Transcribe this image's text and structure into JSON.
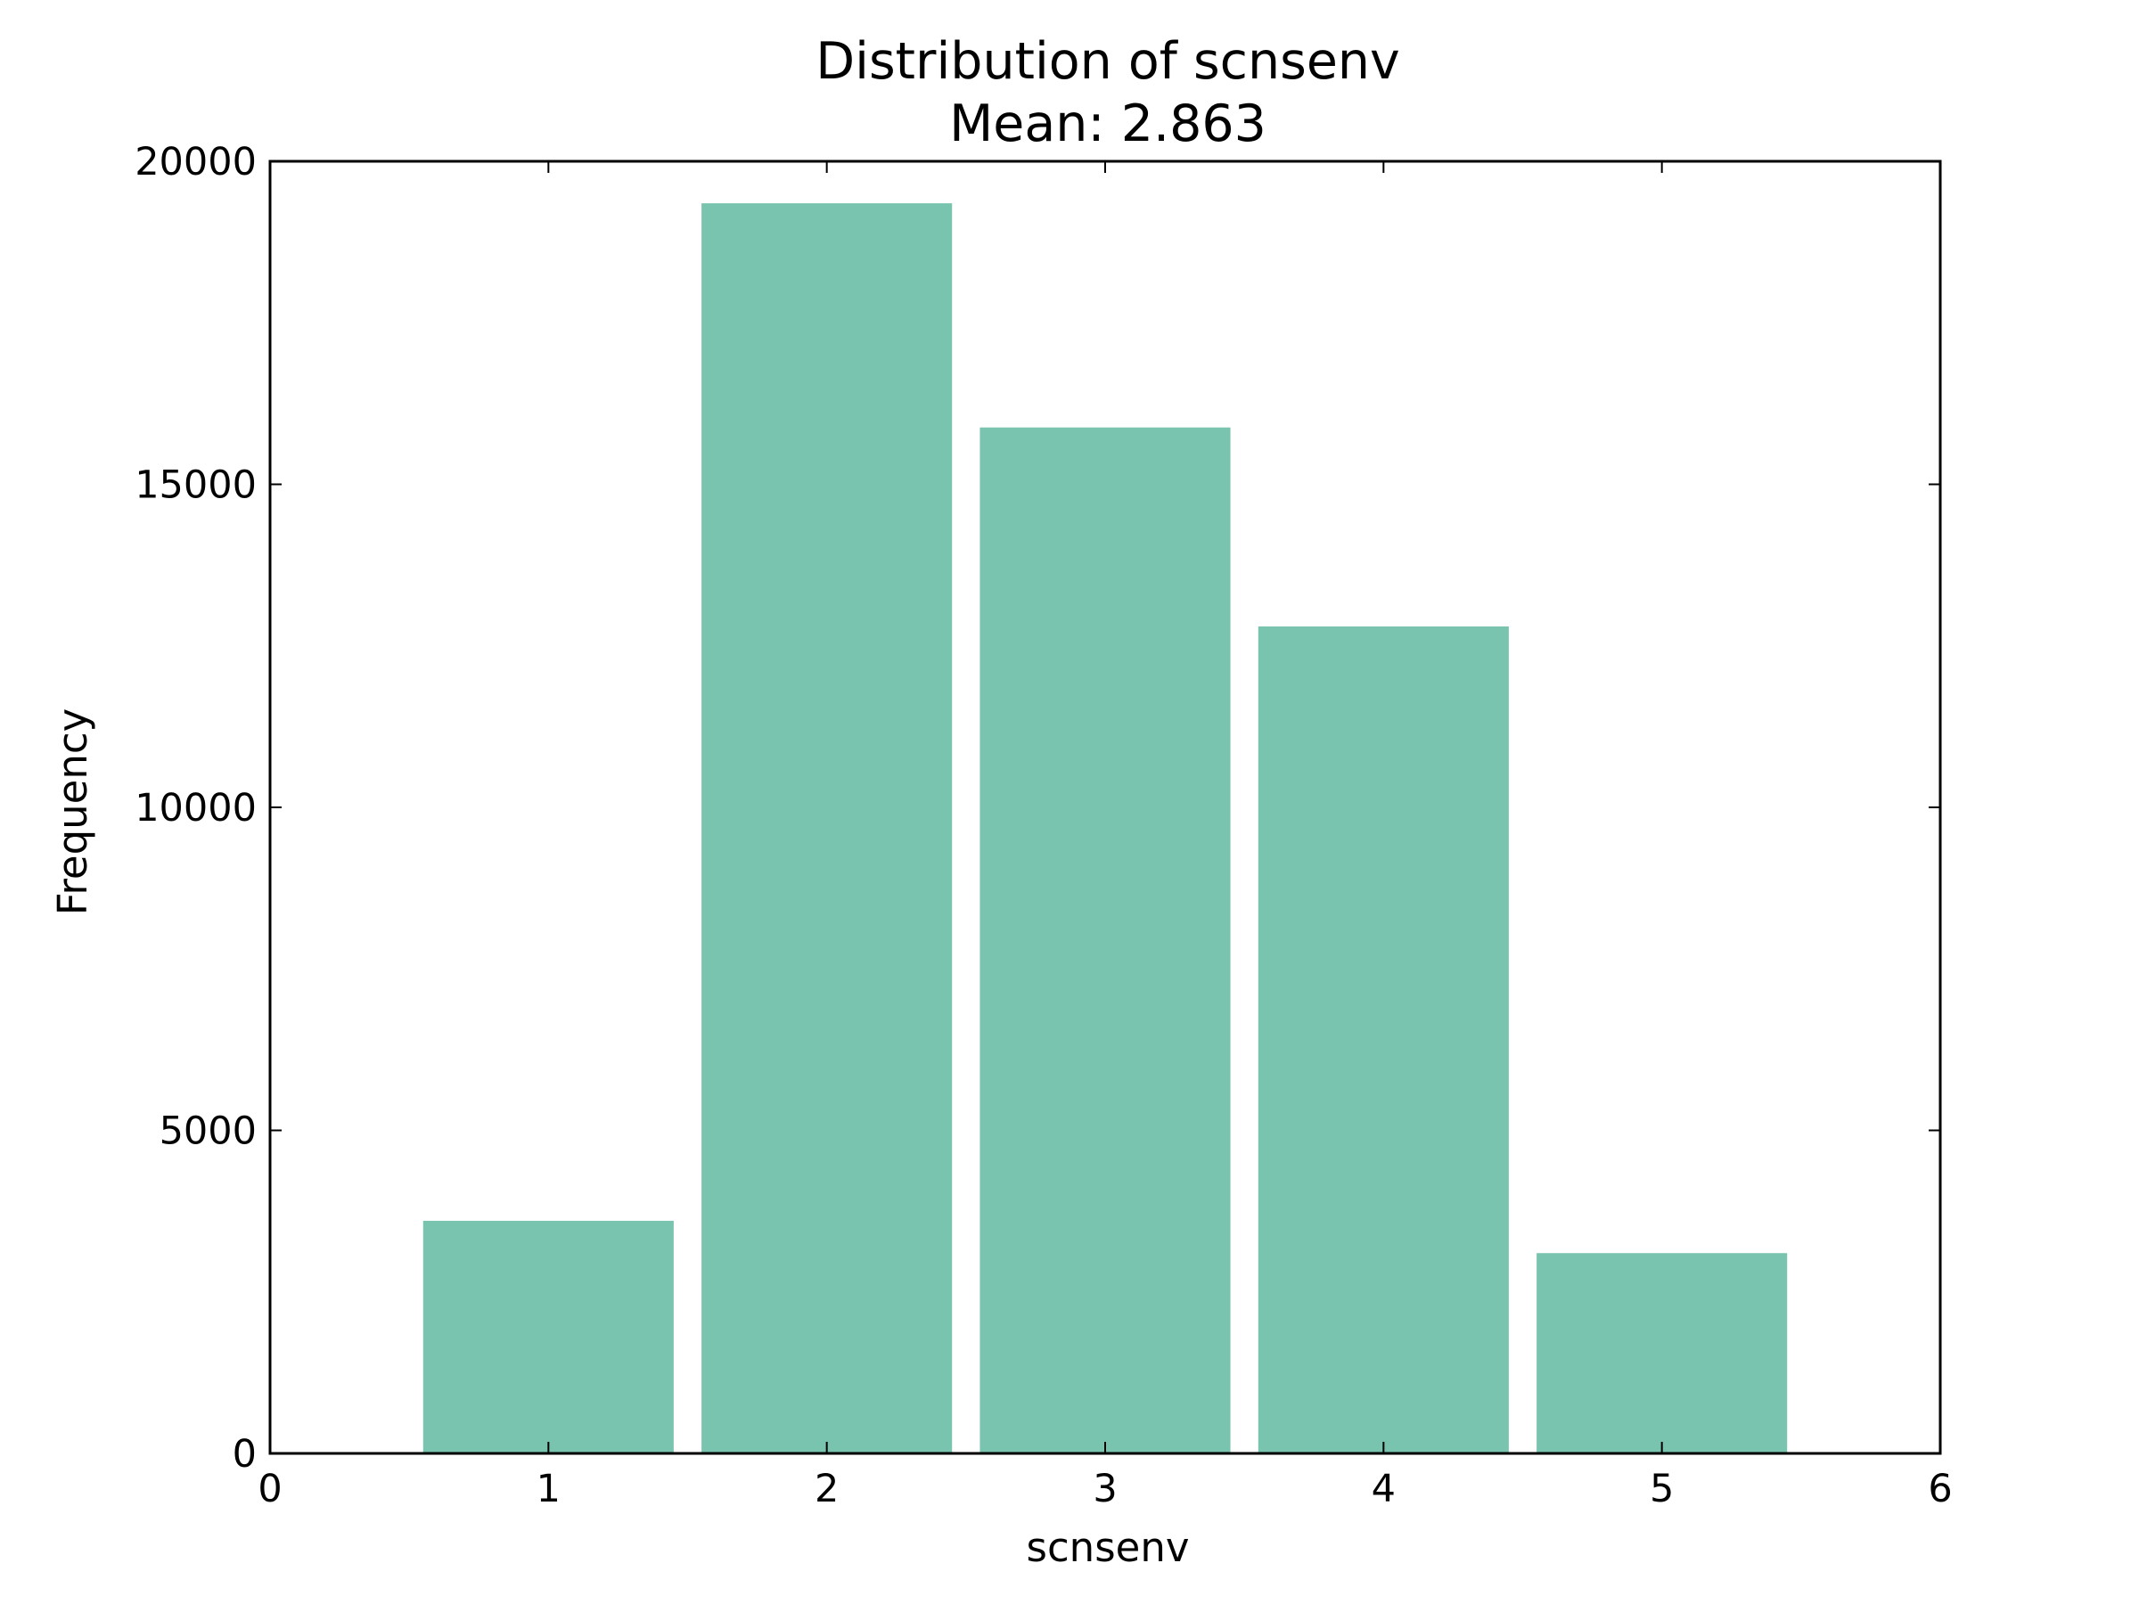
{
  "chart_data": {
    "type": "bar",
    "title": "Distribution of scnsenv",
    "subtitle": "Mean: 2.863",
    "xlabel": "scnsenv",
    "ylabel": "Frequency",
    "categories": [
      1,
      2,
      3,
      4,
      5
    ],
    "values": [
      3600,
      19350,
      15880,
      12800,
      3100
    ],
    "bar_width": 0.9,
    "xlim": [
      0,
      6
    ],
    "ylim": [
      0,
      20000
    ],
    "xticks": [
      0,
      1,
      2,
      3,
      4,
      5,
      6
    ],
    "yticks": [
      0,
      5000,
      10000,
      15000,
      20000
    ],
    "grid": false,
    "bar_color": "#78c4ae",
    "axis_color": "#000000"
  }
}
